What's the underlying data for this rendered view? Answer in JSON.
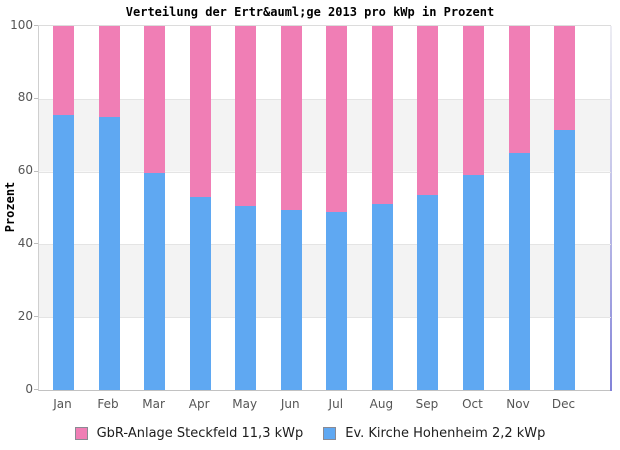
{
  "chart": {
    "title": "Verteilung der Ertr&auml;ge 2013 pro kWp in Prozent",
    "ylabel": "Prozent"
  },
  "chart_data": {
    "type": "bar",
    "stacked": true,
    "title": "Verteilung der Ertr&auml;ge 2013 pro kWp in Prozent",
    "xlabel": "",
    "ylabel": "Prozent",
    "ylim": [
      0,
      100
    ],
    "yticks": [
      0,
      20,
      40,
      60,
      80,
      100
    ],
    "grid": "horizontal-bands",
    "legend_position": "bottom",
    "categories": [
      "Jan",
      "Feb",
      "Mar",
      "Apr",
      "May",
      "Jun",
      "Jul",
      "Aug",
      "Sep",
      "Oct",
      "Nov",
      "Dec"
    ],
    "series": [
      {
        "name": "Ev. Kirche Hohenheim 2,2 kWp",
        "color": "#5FA8F2",
        "values": [
          75.5,
          75,
          59.5,
          53,
          50.5,
          49.5,
          49,
          51,
          53.5,
          59,
          65,
          71.5
        ]
      },
      {
        "name": "GbR-Anlage Steckfeld 11,3 kWp",
        "color": "#F07EB5",
        "values": [
          24.5,
          25,
          40.5,
          47,
          49.5,
          50.5,
          51,
          49,
          46.5,
          41,
          35,
          28.5
        ]
      }
    ]
  },
  "legend": {
    "items": [
      {
        "label": "GbR-Anlage Steckfeld 11,3 kWp",
        "color": "#F07EB5",
        "swatch_border": "#8a8a93"
      },
      {
        "label": "Ev. Kirche Hohenheim 2,2 kWp",
        "color": "#5FA8F2",
        "swatch_border": "#8a8a93"
      }
    ]
  },
  "colors": {
    "pink_series": "#F07EB5",
    "blue_series": "#5FA8F2",
    "band_gray": "#F3F3F3",
    "gridline": "#E4E4E4",
    "axis_border": "#C2C2C2",
    "tick_text": "#555555",
    "right_edge_bottom": "#8282D8"
  }
}
